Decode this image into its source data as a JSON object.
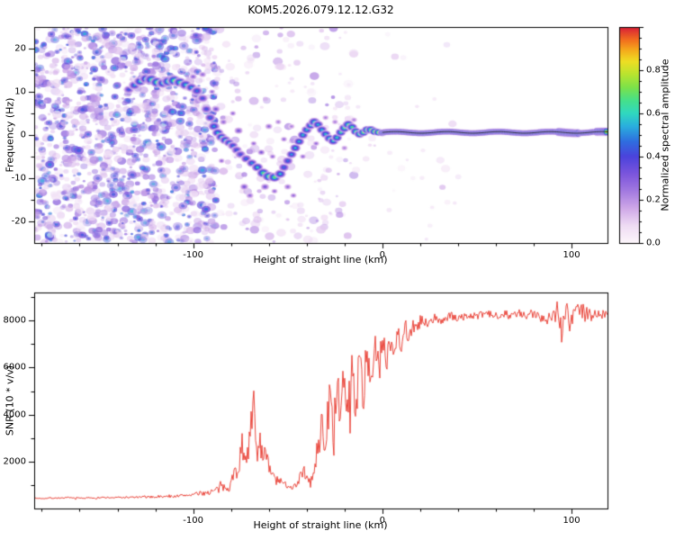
{
  "title": "KOM5.2026.079.12.12.G32",
  "colors": {
    "axis": "#000000",
    "background": "#ffffff"
  },
  "colormap": {
    "label": "Normalized spectral amplitude",
    "range": [
      0,
      1
    ],
    "ticks": [
      0.0,
      0.2,
      0.4,
      0.6,
      0.8
    ],
    "tick_labels": [
      "0.0",
      "0.2",
      "0.4",
      "0.6",
      "0.8"
    ],
    "stops": [
      [
        0.0,
        "#fdf6fb"
      ],
      [
        0.08,
        "#efdcf4"
      ],
      [
        0.16,
        "#cfa8e8"
      ],
      [
        0.24,
        "#a37ae0"
      ],
      [
        0.32,
        "#7b55dc"
      ],
      [
        0.4,
        "#4b43dc"
      ],
      [
        0.47,
        "#2f6ee0"
      ],
      [
        0.54,
        "#2aaede"
      ],
      [
        0.6,
        "#30d8c0"
      ],
      [
        0.66,
        "#46e08a"
      ],
      [
        0.72,
        "#7ce24a"
      ],
      [
        0.78,
        "#b8e430"
      ],
      [
        0.84,
        "#eede24"
      ],
      [
        0.89,
        "#f5ad1c"
      ],
      [
        0.94,
        "#f26e1e"
      ],
      [
        1.0,
        "#d81e38"
      ]
    ]
  },
  "chart_data": [
    {
      "type": "heatmap",
      "title": "",
      "xlabel": "Height of straight line (km)",
      "ylabel": "Frequency (Hz)",
      "xlim": [
        -184,
        119
      ],
      "ylim": [
        -25,
        25
      ],
      "xticks": [
        -100,
        0,
        100
      ],
      "yticks": [
        -20,
        -10,
        0,
        10,
        20
      ],
      "xminor": 20,
      "yminor": 5,
      "noise": {
        "seed": 42,
        "regions": [
          {
            "x": [
              -184,
              -88
            ],
            "count": 1500,
            "amp": [
              0.06,
              0.45
            ]
          },
          {
            "x": [
              -88,
              -15
            ],
            "count": 210,
            "amp": [
              0.05,
              0.25
            ]
          },
          {
            "x": [
              -15,
              45
            ],
            "count": 30,
            "amp": [
              0.04,
              0.15
            ]
          }
        ]
      },
      "track": [
        [
          -134,
          10.5,
          0.45,
          5
        ],
        [
          -131,
          11.5,
          0.55,
          5.5
        ],
        [
          -128,
          12.4,
          0.6,
          6
        ],
        [
          -125,
          13,
          0.62,
          6
        ],
        [
          -122,
          12.8,
          0.68,
          6.5
        ],
        [
          -119,
          12.2,
          0.72,
          6.5
        ],
        [
          -116,
          12,
          0.62,
          6
        ],
        [
          -113,
          12.4,
          0.7,
          6.5
        ],
        [
          -110,
          12.6,
          0.74,
          6.5
        ],
        [
          -107,
          12.2,
          0.68,
          6
        ],
        [
          -104,
          11.6,
          0.6,
          6
        ],
        [
          -101,
          11,
          0.55,
          5.5
        ],
        [
          -98,
          10.2,
          0.5,
          5.5
        ],
        [
          -95,
          8.5,
          0.45,
          5
        ],
        [
          -93,
          6,
          0.45,
          5
        ],
        [
          -91,
          4,
          0.5,
          5
        ],
        [
          -89,
          2,
          0.55,
          5.5
        ],
        [
          -87,
          0.5,
          0.6,
          5.5
        ],
        [
          -85,
          -0.5,
          0.62,
          5.5
        ],
        [
          -83,
          -1.2,
          0.6,
          5.5
        ],
        [
          -81,
          -1.8,
          0.55,
          5
        ],
        [
          -79,
          -2.5,
          0.5,
          5
        ],
        [
          -77,
          -3.5,
          0.48,
          5
        ],
        [
          -75,
          -4.5,
          0.45,
          5
        ],
        [
          -72,
          -5.5,
          0.5,
          5
        ],
        [
          -69,
          -6.5,
          0.55,
          5
        ],
        [
          -66,
          -7.5,
          0.62,
          5.5
        ],
        [
          -63,
          -8.8,
          0.7,
          6
        ],
        [
          -60,
          -9.6,
          0.75,
          6
        ],
        [
          -57,
          -9.8,
          0.72,
          6
        ],
        [
          -54,
          -9,
          0.6,
          5.5
        ],
        [
          -52,
          -7.5,
          0.5,
          5
        ],
        [
          -50,
          -6,
          0.5,
          5
        ],
        [
          -48,
          -4.5,
          0.55,
          5
        ],
        [
          -46,
          -3,
          0.6,
          5
        ],
        [
          -44,
          -1.5,
          0.6,
          5
        ],
        [
          -42,
          0,
          0.62,
          5
        ],
        [
          -40,
          1.2,
          0.6,
          5
        ],
        [
          -38,
          2.2,
          0.62,
          5
        ],
        [
          -36,
          3,
          0.65,
          5.5
        ],
        [
          -34,
          2.4,
          0.6,
          5
        ],
        [
          -32,
          1.2,
          0.6,
          5
        ],
        [
          -30,
          0.2,
          0.62,
          5
        ],
        [
          -28,
          -0.8,
          0.65,
          5
        ],
        [
          -26,
          -1.4,
          0.62,
          5
        ],
        [
          -24,
          -0.6,
          0.65,
          5
        ],
        [
          -22,
          0.6,
          0.68,
          5
        ],
        [
          -20,
          1.6,
          0.7,
          5.5
        ],
        [
          -18,
          2.4,
          0.72,
          5.5
        ],
        [
          -16,
          1.8,
          0.7,
          5
        ],
        [
          -14,
          0.8,
          0.72,
          5
        ],
        [
          -12,
          0.2,
          0.75,
          5
        ],
        [
          -10,
          0.6,
          0.78,
          5
        ],
        [
          -8,
          1.2,
          0.8,
          5
        ],
        [
          -6,
          1.2,
          0.82,
          5
        ],
        [
          -4,
          0.8,
          0.85,
          4.8
        ],
        [
          -2,
          0.6,
          0.9,
          4.6
        ],
        [
          0,
          0.5,
          0.95,
          4.4
        ]
      ],
      "scatter_blobs": [
        [
          -100,
          13.5,
          0.32,
          3.5
        ],
        [
          -95,
          14,
          0.3,
          3.5
        ],
        [
          -90,
          10,
          0.3,
          3
        ],
        [
          -88,
          6,
          0.35,
          4
        ],
        [
          -85,
          -6,
          0.3,
          3
        ],
        [
          -84,
          3,
          0.3,
          3.5
        ],
        [
          -79,
          5,
          0.3,
          3
        ],
        [
          -76,
          1,
          0.35,
          4
        ],
        [
          -73,
          -12,
          0.35,
          4
        ],
        [
          -70,
          -14,
          0.3,
          3.5
        ],
        [
          -68,
          -2,
          0.3,
          3
        ],
        [
          -64,
          -4,
          0.35,
          3.5
        ],
        [
          -62,
          -12,
          0.35,
          4
        ],
        [
          -58,
          -5,
          0.3,
          3
        ],
        [
          -57,
          -13,
          0.3,
          3
        ],
        [
          -55,
          3,
          0.25,
          3
        ],
        [
          -60,
          2,
          0.3,
          3.5
        ],
        [
          -52,
          -1,
          0.3,
          3
        ],
        [
          -50,
          -12,
          0.3,
          3.5
        ],
        [
          -48,
          2,
          0.25,
          3
        ],
        [
          -47,
          -14,
          0.3,
          3
        ],
        [
          -42,
          -5,
          0.3,
          3
        ],
        [
          -35,
          -2,
          0.3,
          3
        ],
        [
          -30,
          4,
          0.25,
          3
        ],
        [
          -25,
          3,
          0.25,
          3
        ],
        [
          -20,
          -3,
          0.25,
          3
        ],
        [
          -15,
          3.5,
          0.25,
          3
        ]
      ],
      "carrier_line": {
        "x_start": 0,
        "x_end": 119,
        "freq": 0.6,
        "amplitude": 0.96,
        "peak_trace_color": "#1a1a1a"
      }
    },
    {
      "type": "line",
      "title": "",
      "xlabel": "Height of straight line (km)",
      "ylabel": "SNR (10 * v/v)",
      "xlim": [
        -184,
        119
      ],
      "ylim": [
        0,
        9200
      ],
      "xticks": [
        -100,
        0,
        100
      ],
      "yticks": [
        2000,
        4000,
        6000,
        8000
      ],
      "xminor": 20,
      "yminor": 1000,
      "series": [
        {
          "name": "SNR",
          "color": "#e8362a",
          "points": [
            [
              -184,
              430,
              60
            ],
            [
              -175,
              445,
              60
            ],
            [
              -166,
              450,
              65
            ],
            [
              -158,
              445,
              65
            ],
            [
              -150,
              460,
              70
            ],
            [
              -142,
              465,
              70
            ],
            [
              -134,
              475,
              75
            ],
            [
              -126,
              485,
              80
            ],
            [
              -118,
              500,
              90
            ],
            [
              -111,
              515,
              100
            ],
            [
              -105,
              555,
              120
            ],
            [
              -100,
              600,
              150
            ],
            [
              -95,
              650,
              180
            ],
            [
              -90,
              720,
              260
            ],
            [
              -86,
              820,
              360
            ],
            [
              -83,
              950,
              460
            ],
            [
              -80,
              1100,
              620
            ],
            [
              -78,
              1500,
              820
            ],
            [
              -76,
              1900,
              920
            ],
            [
              -74,
              2400,
              1100
            ],
            [
              -72,
              2600,
              1250
            ],
            [
              -70,
              2900,
              1400
            ],
            [
              -68,
              4300,
              1650
            ],
            [
              -67,
              3200,
              1350
            ],
            [
              -66,
              2500,
              1050
            ],
            [
              -64,
              2800,
              1200
            ],
            [
              -62,
              2300,
              950
            ],
            [
              -60,
              1700,
              720
            ],
            [
              -58,
              1400,
              520
            ],
            [
              -56,
              1200,
              420
            ],
            [
              -54,
              1100,
              360
            ],
            [
              -52,
              1050,
              310
            ],
            [
              -50,
              1000,
              290
            ],
            [
              -48,
              950,
              270
            ],
            [
              -46,
              950,
              270
            ],
            [
              -44,
              1300,
              520
            ],
            [
              -42,
              1700,
              720
            ],
            [
              -40,
              1200,
              420
            ],
            [
              -38,
              1100,
              420
            ],
            [
              -36,
              1500,
              720
            ],
            [
              -34,
              2600,
              1250
            ],
            [
              -32,
              3600,
              1550
            ],
            [
              -30,
              2800,
              1350
            ],
            [
              -28,
              4600,
              1850
            ],
            [
              -26,
              3400,
              1550
            ],
            [
              -24,
              5200,
              1950
            ],
            [
              -22,
              3600,
              1650
            ],
            [
              -20,
              5600,
              1850
            ],
            [
              -18,
              4200,
              1750
            ],
            [
              -16,
              5900,
              1750
            ],
            [
              -14,
              4400,
              1650
            ],
            [
              -12,
              6300,
              1550
            ],
            [
              -10,
              4800,
              1650
            ],
            [
              -8,
              6600,
              1450
            ],
            [
              -6,
              5400,
              1450
            ],
            [
              -4,
              7000,
              1250
            ],
            [
              -2,
              5800,
              1350
            ],
            [
              0,
              7200,
              1150
            ],
            [
              2,
              6200,
              1250
            ],
            [
              4,
              7400,
              1050
            ],
            [
              6,
              6600,
              1050
            ],
            [
              8,
              7600,
              850
            ],
            [
              10,
              7000,
              950
            ],
            [
              12,
              7800,
              750
            ],
            [
              14,
              7300,
              750
            ],
            [
              16,
              7900,
              650
            ],
            [
              18,
              7500,
              650
            ],
            [
              20,
              8000,
              550
            ],
            [
              24,
              7800,
              480
            ],
            [
              28,
              8100,
              420
            ],
            [
              32,
              8000,
              380
            ],
            [
              36,
              8200,
              330
            ],
            [
              40,
              8100,
              320
            ],
            [
              45,
              8200,
              280
            ],
            [
              50,
              8200,
              270
            ],
            [
              55,
              8300,
              260
            ],
            [
              60,
              8200,
              310
            ],
            [
              64,
              8350,
              360
            ],
            [
              68,
              8200,
              320
            ],
            [
              72,
              8300,
              360
            ],
            [
              76,
              8150,
              420
            ],
            [
              80,
              8300,
              420
            ],
            [
              84,
              8200,
              470
            ],
            [
              88,
              8100,
              520
            ],
            [
              91,
              8300,
              720
            ],
            [
              93,
              8600,
              950
            ],
            [
              95,
              7400,
              1250
            ],
            [
              97,
              8700,
              1050
            ],
            [
              99,
              7800,
              950
            ],
            [
              101,
              8300,
              750
            ],
            [
              103,
              8500,
              650
            ],
            [
              105,
              8700,
              850
            ],
            [
              107,
              8200,
              650
            ],
            [
              109,
              8400,
              550
            ],
            [
              111,
              8200,
              480
            ],
            [
              113,
              8300,
              420
            ],
            [
              115,
              8200,
              420
            ],
            [
              117,
              8300,
              380
            ],
            [
              119,
              8250,
              330
            ]
          ]
        }
      ]
    }
  ]
}
